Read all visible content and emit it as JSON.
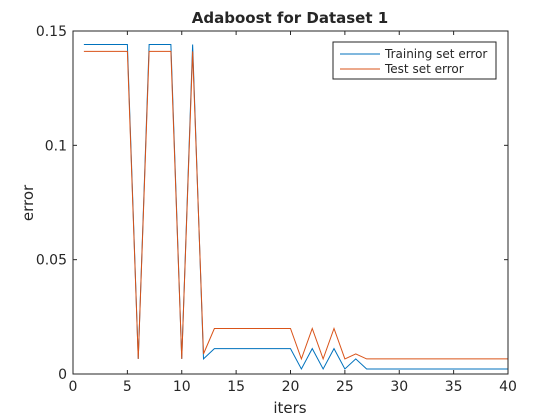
{
  "chart_data": {
    "type": "line",
    "title": "Adaboost for Dataset 1",
    "xlabel": "iters",
    "ylabel": "error",
    "xlim": [
      0,
      40
    ],
    "ylim": [
      0,
      0.15
    ],
    "xticks": [
      0,
      5,
      10,
      15,
      20,
      25,
      30,
      35,
      40
    ],
    "xtick_labels": [
      "0",
      "5",
      "10",
      "15",
      "20",
      "25",
      "30",
      "35",
      "40"
    ],
    "yticks": [
      0,
      0.05,
      0.1,
      0.15
    ],
    "ytick_labels": [
      "0",
      "0.05",
      "0.1",
      "0.15"
    ],
    "grid": false,
    "legend_position": "top-right",
    "x": [
      1,
      2,
      3,
      4,
      5,
      6,
      7,
      8,
      9,
      10,
      11,
      12,
      13,
      14,
      15,
      16,
      17,
      18,
      19,
      20,
      21,
      22,
      23,
      24,
      25,
      26,
      27,
      28,
      29,
      30,
      31,
      32,
      33,
      34,
      35,
      36,
      37,
      38,
      39,
      40
    ],
    "series": [
      {
        "name": "Training set error",
        "color": "#0072bd",
        "values": [
          0.1441,
          0.1441,
          0.1441,
          0.1441,
          0.1441,
          0.0066,
          0.1441,
          0.1441,
          0.1441,
          0.0066,
          0.1441,
          0.0066,
          0.0111,
          0.0111,
          0.0111,
          0.0111,
          0.0111,
          0.0111,
          0.0111,
          0.0111,
          0.0022,
          0.0111,
          0.0022,
          0.0111,
          0.0022,
          0.0066,
          0.0022,
          0.0022,
          0.0022,
          0.0022,
          0.0022,
          0.0022,
          0.0022,
          0.0022,
          0.0022,
          0.0022,
          0.0022,
          0.0022,
          0.0022,
          0.0022
        ]
      },
      {
        "name": "Test set error",
        "color": "#d95319",
        "values": [
          0.1411,
          0.1411,
          0.1411,
          0.1411,
          0.1411,
          0.0066,
          0.1411,
          0.1411,
          0.1411,
          0.0066,
          0.1411,
          0.0088,
          0.0199,
          0.0199,
          0.0199,
          0.0199,
          0.0199,
          0.0199,
          0.0199,
          0.0199,
          0.0066,
          0.0199,
          0.0066,
          0.0199,
          0.0066,
          0.0088,
          0.0066,
          0.0066,
          0.0066,
          0.0066,
          0.0066,
          0.0066,
          0.0066,
          0.0066,
          0.0066,
          0.0066,
          0.0066,
          0.0066,
          0.0066,
          0.0066
        ]
      }
    ]
  }
}
